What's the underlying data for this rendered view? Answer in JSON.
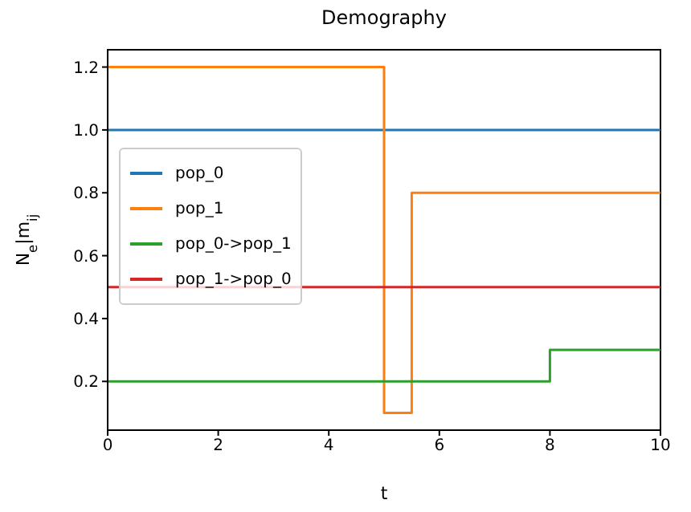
{
  "chart_data": {
    "type": "step",
    "title": "Demography",
    "xlabel": "t",
    "ylabel": "N$_{e}$|m$_{ij}$",
    "xlim": [
      0,
      10
    ],
    "xticks": [
      0,
      2,
      4,
      6,
      8,
      10
    ],
    "ylim": [
      0.045,
      1.255
    ],
    "yticks": [
      0.2,
      0.4,
      0.6,
      0.8,
      {
        "value": 1,
        "label": "1.0"
      },
      1.2
    ],
    "legend": "center left",
    "grid": false,
    "marker": "none",
    "line_style": "solid",
    "series": [
      {
        "name": "pop_0",
        "color": "#1f77b4",
        "x": [
          0,
          10
        ],
        "values": [
          1.0,
          1.0
        ]
      },
      {
        "name": "pop_1",
        "color": "#ff7f0e",
        "x": [
          0,
          5,
          5.5,
          10
        ],
        "values": [
          1.2,
          0.1,
          0.8,
          0.8
        ]
      },
      {
        "name": "pop_0->pop_1",
        "color": "#2ca02c",
        "x": [
          0,
          8,
          10
        ],
        "values": [
          0.2,
          0.3,
          0.3
        ]
      },
      {
        "name": "pop_1->pop_0",
        "color": "#d62728",
        "x": [
          0,
          10
        ],
        "values": [
          0.5,
          0.5
        ]
      }
    ]
  }
}
